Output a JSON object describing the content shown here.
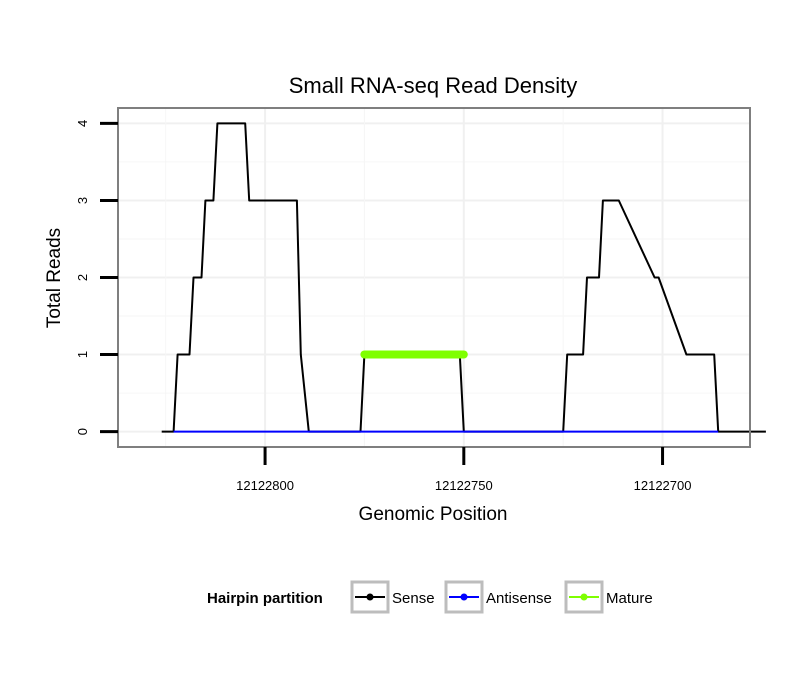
{
  "chart_data": {
    "type": "line",
    "title": "Small RNA-seq Read Density",
    "xlabel": "Genomic Position",
    "ylabel": "Total Reads",
    "x_reversed": true,
    "xlim": [
      12122837,
      12122678
    ],
    "ylim": [
      -0.2,
      4.2
    ],
    "x_ticks": [
      12122800,
      12122750,
      12122700
    ],
    "x_tick_labels": [
      "12122800",
      "12122750",
      "12122700"
    ],
    "y_ticks": [
      0,
      1,
      2,
      3,
      4
    ],
    "y_tick_labels": [
      "0",
      "1",
      "2",
      "3",
      "4"
    ],
    "legend": {
      "title": "Hairpin partition",
      "position": "bottom",
      "entries": [
        {
          "label": "Sense",
          "color": "#000000"
        },
        {
          "label": "Antisense",
          "color": "#0000ff"
        },
        {
          "label": "Mature",
          "color": "#7fff00"
        }
      ]
    },
    "series": [
      {
        "name": "Sense",
        "color": "#000000",
        "x": [
          12122826,
          12122823,
          12122822,
          12122819,
          12122818,
          12122816,
          12122815,
          12122813,
          12122812,
          12122805,
          12122804,
          12122792,
          12122791,
          12122789,
          12122776,
          12122775,
          12122751,
          12122750,
          12122725,
          12122724,
          12122720,
          12122719,
          12122716,
          12122715,
          12122712,
          12122711,
          12122702,
          12122701,
          12122694,
          12122693,
          12122687,
          12122686,
          12122674
        ],
        "y": [
          0,
          0,
          1,
          1,
          2,
          2,
          3,
          3,
          4,
          4,
          3,
          3,
          1,
          0,
          0,
          1,
          1,
          0,
          0,
          1,
          1,
          2,
          2,
          3,
          3,
          3,
          2,
          2,
          1,
          1,
          1,
          0,
          0
        ]
      },
      {
        "name": "Antisense",
        "color": "#0000ff",
        "x": [
          12122823,
          12122686
        ],
        "y": [
          0,
          0
        ]
      },
      {
        "name": "Mature",
        "color": "#7fff00",
        "x": [
          12122775,
          12122750
        ],
        "y": [
          1,
          1
        ]
      }
    ]
  }
}
